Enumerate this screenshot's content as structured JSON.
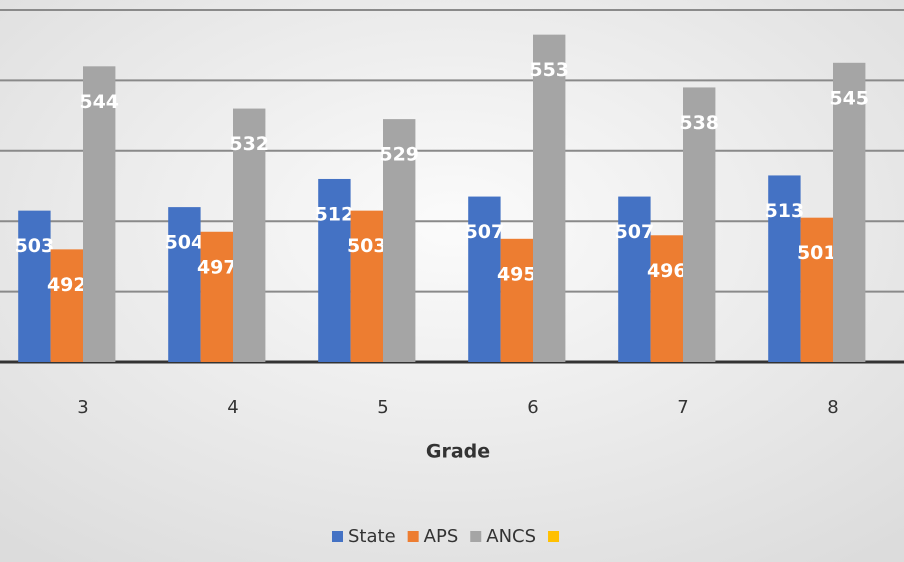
{
  "chart_data": {
    "type": "bar",
    "x_label": "Grade",
    "categories": [
      "3",
      "4",
      "5",
      "6",
      "7",
      "8"
    ],
    "series": [
      {
        "name": "State",
        "color": "#4472c4",
        "values": [
          503,
          504,
          512,
          507,
          507,
          513
        ]
      },
      {
        "name": "APS",
        "color": "#ed7d31",
        "values": [
          492,
          497,
          503,
          495,
          496,
          501
        ]
      },
      {
        "name": "ANCS",
        "color": "#a5a5a5",
        "values": [
          544,
          532,
          529,
          553,
          538,
          545
        ]
      },
      {
        "name": null,
        "color": "#ffc000",
        "values": [
          null,
          null,
          null,
          null,
          null,
          null
        ]
      }
    ],
    "ylim": [
      460,
      560
    ],
    "yticks": [
      460,
      480,
      500,
      520,
      540,
      560
    ],
    "grid": true
  }
}
